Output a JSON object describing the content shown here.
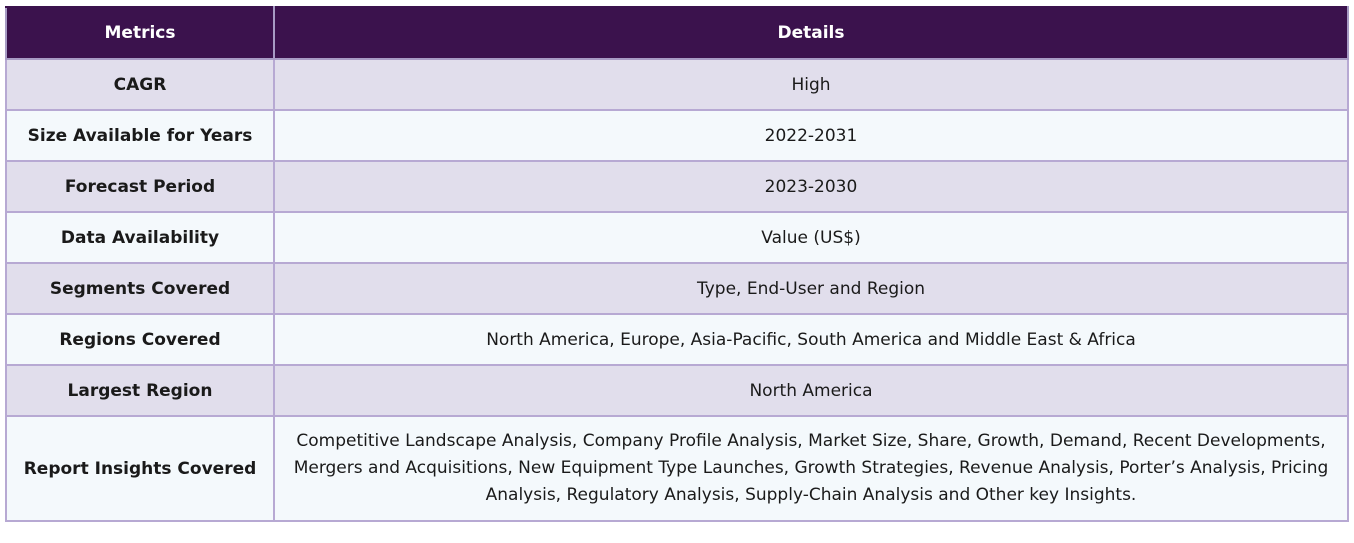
{
  "table": {
    "headers": [
      "Metrics",
      "Details"
    ],
    "rows": [
      {
        "metric": "CAGR",
        "detail": "High"
      },
      {
        "metric": "Size Available for Years",
        "detail": "2022-2031"
      },
      {
        "metric": "Forecast Period",
        "detail": "2023-2030"
      },
      {
        "metric": "Data Availability",
        "detail": "Value (US$)"
      },
      {
        "metric": "Segments Covered",
        "detail": "Type, End-User and Region"
      },
      {
        "metric": "Regions Covered",
        "detail": "North America, Europe, Asia-Pacific, South America and Middle East & Africa"
      },
      {
        "metric": "Largest Region",
        "detail": "North America"
      },
      {
        "metric": "Report Insights Covered",
        "detail": "Competitive Landscape Analysis, Company Profile Analysis, Market Size, Share, Growth, Demand, Recent Developments, Mergers and Acquisitions, New Equipment Type Launches, Growth Strategies, Revenue Analysis, Porter’s Analysis, Pricing Analysis, Regulatory Analysis, Supply-Chain Analysis and Other key Insights."
      }
    ]
  },
  "colors": {
    "header_bg": "#3b124d",
    "row_odd_bg": "#e1deec",
    "row_even_bg": "#f4f9fc",
    "border": "#b7a9d3"
  }
}
